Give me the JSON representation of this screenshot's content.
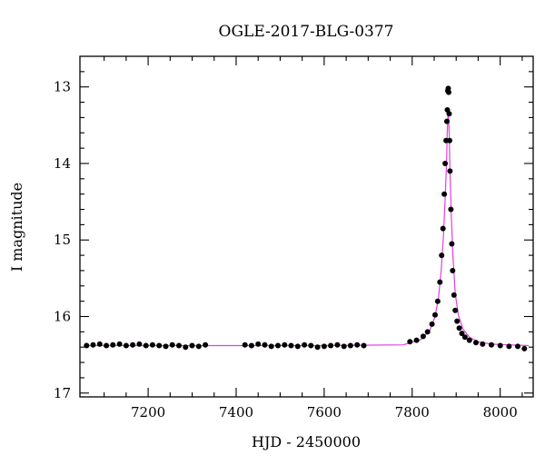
{
  "chart_data": {
    "type": "scatter",
    "title": "OGLE-2017-BLG-0377",
    "xlabel": "HJD - 2450000",
    "ylabel": "I magnitude",
    "xlim": [
      7045,
      8075
    ],
    "ylim": [
      17.05,
      12.6
    ],
    "y_inverted": true,
    "grid": false,
    "xticks": [
      7200,
      7400,
      7600,
      7800,
      8000
    ],
    "xtick_labels": [
      "7200",
      "7400",
      "7600",
      "7800",
      "8000"
    ],
    "yticks": [
      13,
      14,
      15,
      16,
      17
    ],
    "ytick_labels": [
      "13",
      "14",
      "15",
      "16",
      "17"
    ],
    "colors": {
      "data": "#000000",
      "model": "#e040e0"
    },
    "series": [
      {
        "kind": "points",
        "x": [
          7060,
          7075,
          7090,
          7105,
          7120,
          7135,
          7150,
          7165,
          7180,
          7195,
          7210,
          7225,
          7240,
          7255,
          7270,
          7285,
          7300,
          7315,
          7330,
          7420,
          7435,
          7450,
          7465,
          7480,
          7495,
          7510,
          7525,
          7540,
          7555,
          7570,
          7585,
          7600,
          7615,
          7630,
          7645,
          7660,
          7675,
          7690,
          7795,
          7810,
          7825,
          7835,
          7845,
          7852,
          7858,
          7863,
          7867,
          7870,
          7873,
          7875,
          7877,
          7879,
          7880,
          7881,
          7882,
          7883,
          7884,
          7885,
          7886,
          7888,
          7890,
          7892,
          7895,
          7898,
          7902,
          7907,
          7913,
          7920,
          7930,
          7945,
          7960,
          7980,
          8000,
          8020,
          8040,
          8055
        ],
        "y": [
          16.38,
          16.37,
          16.36,
          16.38,
          16.37,
          16.36,
          16.38,
          16.37,
          16.36,
          16.38,
          16.37,
          16.38,
          16.39,
          16.37,
          16.38,
          16.4,
          16.38,
          16.39,
          16.37,
          16.37,
          16.38,
          16.36,
          16.37,
          16.39,
          16.38,
          16.37,
          16.38,
          16.39,
          16.37,
          16.38,
          16.4,
          16.39,
          16.38,
          16.37,
          16.39,
          16.38,
          16.37,
          16.38,
          16.33,
          16.31,
          16.26,
          16.2,
          16.1,
          15.98,
          15.8,
          15.55,
          15.2,
          14.85,
          14.4,
          14.0,
          13.7,
          13.45,
          13.3,
          13.05,
          13.02,
          13.07,
          13.35,
          13.7,
          14.1,
          14.6,
          15.05,
          15.4,
          15.72,
          15.92,
          16.06,
          16.15,
          16.22,
          16.27,
          16.31,
          16.34,
          16.36,
          16.37,
          16.38,
          16.39,
          16.39,
          16.42
        ]
      },
      {
        "kind": "model",
        "x": [
          7055,
          7300,
          7600,
          7780,
          7820,
          7840,
          7852,
          7860,
          7866,
          7871,
          7875,
          7878,
          7880,
          7882,
          7884,
          7886,
          7889,
          7893,
          7898,
          7905,
          7915,
          7930,
          7950,
          7980,
          8020,
          8065
        ],
        "y": [
          16.38,
          16.38,
          16.38,
          16.37,
          16.3,
          16.18,
          16.0,
          15.75,
          15.4,
          14.95,
          14.45,
          14.0,
          13.55,
          13.3,
          13.6,
          14.1,
          14.7,
          15.25,
          15.7,
          15.98,
          16.16,
          16.27,
          16.33,
          16.36,
          16.37,
          16.38
        ]
      }
    ]
  }
}
